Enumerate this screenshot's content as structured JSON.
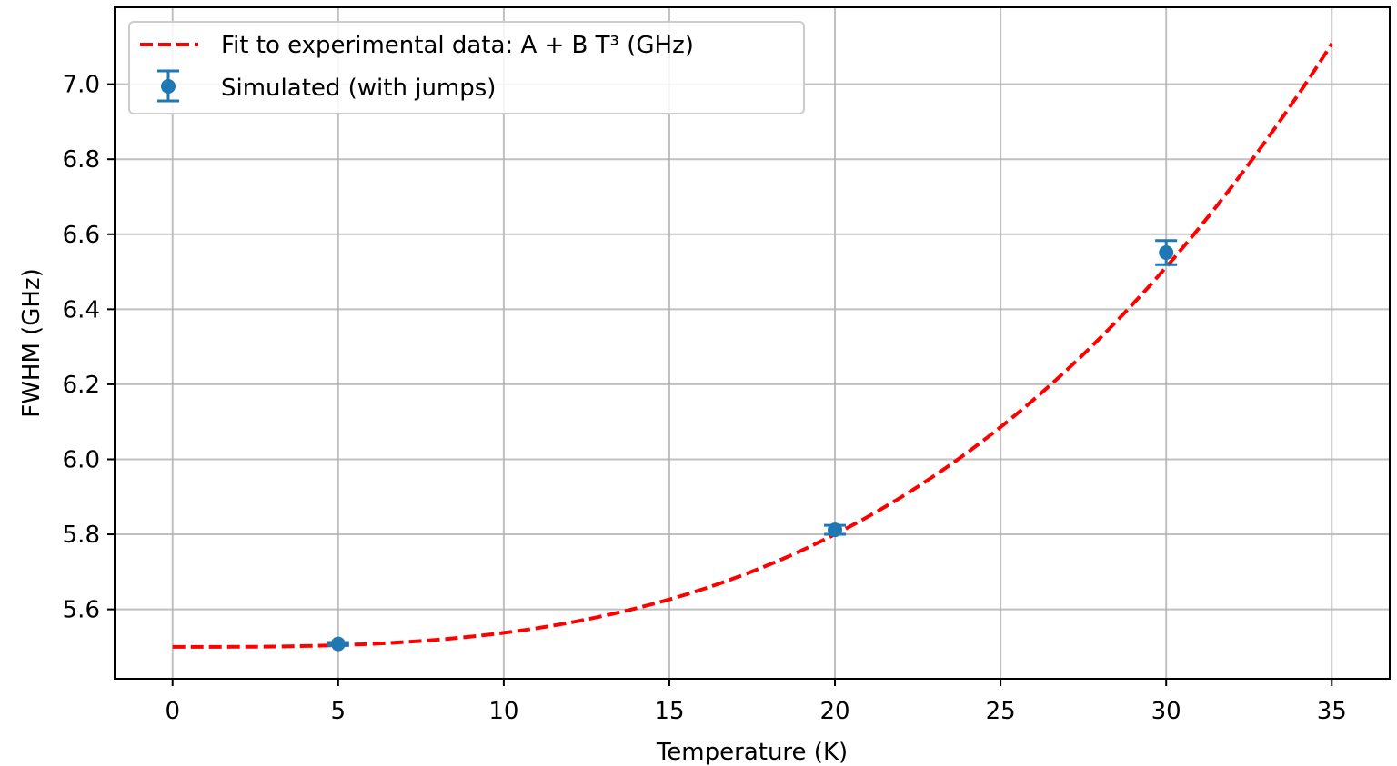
{
  "chart_data": {
    "type": "line",
    "title": "",
    "xlabel": "Temperature (K)",
    "ylabel": "FWHM (GHz)",
    "xlim": [
      -1.75,
      36.75
    ],
    "ylim": [
      5.415,
      7.205
    ],
    "x_ticks": [
      0,
      5,
      10,
      15,
      20,
      25,
      30,
      35
    ],
    "x_tick_labels": [
      "0",
      "5",
      "10",
      "15",
      "20",
      "25",
      "30",
      "35"
    ],
    "y_ticks": [
      5.6,
      5.8,
      6.0,
      6.2,
      6.4,
      6.6,
      6.8,
      7.0
    ],
    "y_tick_labels": [
      "5.6",
      "5.8",
      "6.0",
      "6.2",
      "6.4",
      "6.6",
      "6.8",
      "7.0"
    ],
    "grid": true,
    "legend_position": "top-left",
    "series": [
      {
        "name": "Fit to experimental data: A + B T³ (GHz)",
        "kind": "fit-line",
        "style": "dashed",
        "color": "#ff0000",
        "model": "A + B*T^3",
        "A": 5.5,
        "B": 3.75e-05,
        "x_range": [
          0,
          35
        ]
      },
      {
        "name": "Simulated (with jumps)",
        "kind": "errorbar",
        "color": "#1f77b4",
        "x": [
          5,
          20,
          30
        ],
        "y": [
          5.508,
          5.812,
          6.551
        ],
        "yerr": [
          0.004,
          0.012,
          0.032
        ]
      }
    ]
  }
}
